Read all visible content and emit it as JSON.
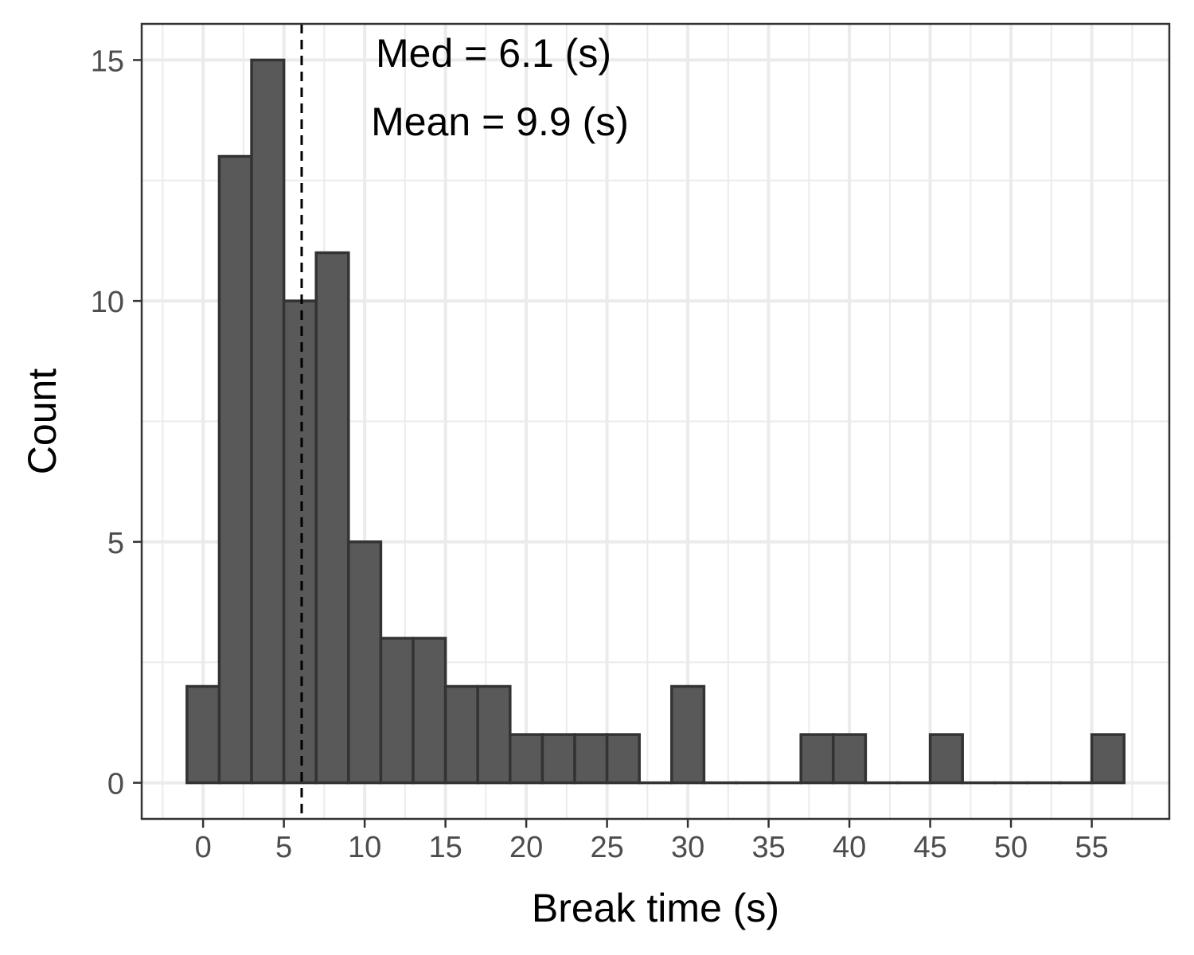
{
  "chart_data": {
    "type": "bar",
    "xlabel": "Break time (s)",
    "ylabel": "Count",
    "binwidth": 2,
    "bin_centers": [
      0,
      2,
      4,
      6,
      8,
      10,
      12,
      14,
      16,
      18,
      20,
      22,
      24,
      26,
      28,
      30,
      32,
      34,
      36,
      38,
      40,
      42,
      44,
      46,
      48,
      50,
      52,
      54,
      56
    ],
    "counts": [
      2,
      13,
      15,
      10,
      11,
      5,
      3,
      3,
      2,
      2,
      1,
      1,
      1,
      1,
      0,
      2,
      0,
      0,
      0,
      1,
      1,
      0,
      0,
      1,
      0,
      0,
      0,
      0,
      1
    ],
    "xlim": [
      -3.8,
      59.8
    ],
    "ylim": [
      -0.75,
      15.75
    ],
    "x_ticks": [
      "0",
      "5",
      "10",
      "15",
      "20",
      "25",
      "30",
      "35",
      "40",
      "45",
      "50",
      "55"
    ],
    "y_ticks": [
      "0",
      "5",
      "10",
      "15"
    ],
    "median": 6.1,
    "mean": 9.9,
    "annotations": {
      "median_text": "Med =  6.1 (s)",
      "mean_text": "Mean =  9.9 (s)"
    },
    "grid": true,
    "legend": "none",
    "colors": {
      "bar_fill": "#595959",
      "bar_stroke": "#333333",
      "grid": "#ebebeb",
      "panel_border": "#333333",
      "median_line": "#000000"
    }
  }
}
